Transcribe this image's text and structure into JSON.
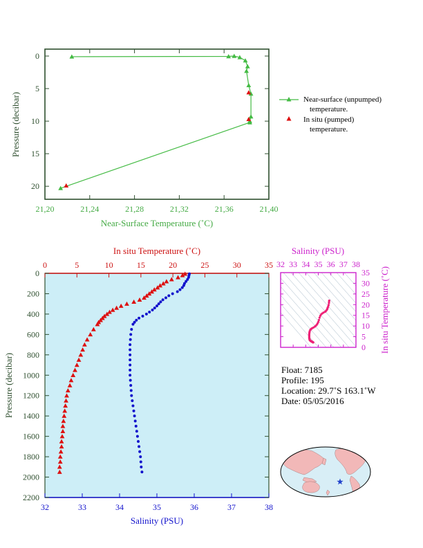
{
  "chart_data": [
    {
      "type": "line",
      "xlabel": "Near-Surface Temperature (˚C)",
      "ylabel": "Pressure (decibar)",
      "xlim": [
        21.2,
        21.4
      ],
      "ylim": [
        0,
        22
      ],
      "xticks": [
        "21,20",
        "21,24",
        "21,28",
        "21,32",
        "21,36",
        "21,40"
      ],
      "yticks": [
        "0",
        "5",
        "10",
        "15",
        "20"
      ],
      "colors": {
        "axis": "#3a5a3a",
        "near_surface": "#44bb44",
        "in_situ": "#dd1111"
      },
      "legend": {
        "placement": "right",
        "near_surface_line1": "Near-surface (unpumped)",
        "near_surface_line2": "temperature.",
        "in_situ_line1": "In situ (pumped)",
        "in_situ_line2": "temperature."
      },
      "series": [
        {
          "name": "Near-surface (unpumped) temperature.",
          "x": [
            21.224,
            21.364,
            21.369,
            21.374,
            21.379,
            21.381,
            21.38,
            21.382,
            21.384,
            21.384,
            21.383,
            21.383,
            21.214
          ],
          "y": [
            0.1,
            0.05,
            0.0,
            0.2,
            0.7,
            1.6,
            2.3,
            4.5,
            5.8,
            9.3,
            10.0,
            10.2,
            20.3
          ]
        },
        {
          "name": "In situ (pumped) temperature.",
          "x": [
            21.382,
            21.382,
            21.219
          ],
          "y": [
            5.6,
            9.7,
            19.9
          ]
        }
      ]
    },
    {
      "type": "scatter",
      "xlabel_top": "In situ Temperature (˚C)",
      "xlabel_bottom": "Salinity (PSU)",
      "ylabel": "Pressure (decibar)",
      "temp_lim": [
        0,
        35
      ],
      "sal_lim": [
        32,
        38
      ],
      "ylim": [
        0,
        2200
      ],
      "temp_ticks": [
        "0",
        "5",
        "10",
        "15",
        "20",
        "25",
        "30",
        "35"
      ],
      "sal_ticks": [
        "32",
        "33",
        "34",
        "35",
        "36",
        "37",
        "38"
      ],
      "yticks": [
        "0",
        "200",
        "400",
        "600",
        "800",
        "1000",
        "1200",
        "1400",
        "1600",
        "1800",
        "2000",
        "2200"
      ],
      "colors": {
        "temperature": "#dd1111",
        "salinity": "#1111cc",
        "background": "#cdeef7"
      },
      "series": [
        {
          "name": "In situ Temperature",
          "pressure": [
            5,
            20,
            40,
            60,
            80,
            100,
            120,
            140,
            160,
            180,
            200,
            220,
            240,
            260,
            280,
            300,
            320,
            340,
            360,
            380,
            400,
            420,
            440,
            460,
            480,
            500,
            550,
            600,
            650,
            700,
            750,
            800,
            850,
            900,
            950,
            1000,
            1050,
            1100,
            1150,
            1200,
            1250,
            1300,
            1350,
            1400,
            1450,
            1500,
            1550,
            1600,
            1650,
            1700,
            1750,
            1800,
            1850,
            1900,
            1950
          ],
          "values": [
            21.9,
            21.5,
            20.8,
            19.8,
            19.0,
            18.5,
            18.0,
            17.6,
            17.1,
            16.7,
            16.3,
            15.9,
            15.5,
            14.8,
            13.9,
            12.8,
            11.9,
            11.2,
            10.6,
            10.1,
            9.7,
            9.3,
            9.0,
            8.7,
            8.4,
            8.2,
            7.6,
            7.1,
            6.6,
            6.2,
            5.9,
            5.6,
            5.3,
            5.0,
            4.7,
            4.4,
            4.1,
            3.9,
            3.6,
            3.4,
            3.3,
            3.2,
            3.1,
            3.0,
            2.9,
            2.8,
            2.8,
            2.7,
            2.6,
            2.6,
            2.5,
            2.4,
            2.4,
            2.3,
            2.3
          ]
        },
        {
          "name": "Salinity",
          "pressure": [
            5,
            20,
            40,
            60,
            80,
            100,
            120,
            140,
            160,
            180,
            200,
            220,
            240,
            260,
            280,
            300,
            320,
            340,
            360,
            380,
            400,
            420,
            440,
            460,
            480,
            500,
            550,
            600,
            650,
            700,
            750,
            800,
            850,
            900,
            950,
            1000,
            1050,
            1100,
            1150,
            1200,
            1250,
            1300,
            1350,
            1400,
            1450,
            1500,
            1550,
            1600,
            1650,
            1700,
            1750,
            1800,
            1850,
            1900,
            1950
          ],
          "values": [
            35.87,
            35.86,
            35.85,
            35.82,
            35.78,
            35.74,
            35.72,
            35.68,
            35.62,
            35.55,
            35.42,
            35.32,
            35.24,
            35.16,
            35.1,
            35.05,
            35.0,
            34.94,
            34.88,
            34.8,
            34.72,
            34.62,
            34.52,
            34.45,
            34.4,
            34.36,
            34.32,
            34.3,
            34.29,
            34.28,
            34.28,
            34.28,
            34.28,
            34.28,
            34.28,
            34.28,
            34.29,
            34.3,
            34.31,
            34.32,
            34.34,
            34.36,
            34.38,
            34.4,
            34.42,
            34.44,
            34.46,
            34.48,
            34.5,
            34.52,
            34.54,
            34.56,
            34.57,
            34.58,
            34.6
          ]
        }
      ]
    },
    {
      "type": "scatter",
      "xlabel_top": "Salinity (PSU)",
      "ylabel_right": "In situ Temperature (˚C)",
      "xlim": [
        32,
        38
      ],
      "ylim": [
        0,
        35
      ],
      "xticks": [
        "32",
        "33",
        "34",
        "35",
        "36",
        "37",
        "38"
      ],
      "yticks": [
        "0",
        "5",
        "10",
        "15",
        "20",
        "25",
        "30",
        "35"
      ],
      "colors": {
        "axis": "#cc22cc",
        "points": "#ee2277"
      }
    }
  ],
  "info": {
    "float": "Float:  7185",
    "profile": "Profile:  195",
    "location": "Location:  29.7˚S  163.1˚W",
    "date": "Date:  05/05/2016"
  },
  "map": {
    "ocean_color": "#d8eef6",
    "land_color": "#f2b8b8",
    "marker_icon": "star-icon",
    "marker_color": "#2244cc"
  }
}
